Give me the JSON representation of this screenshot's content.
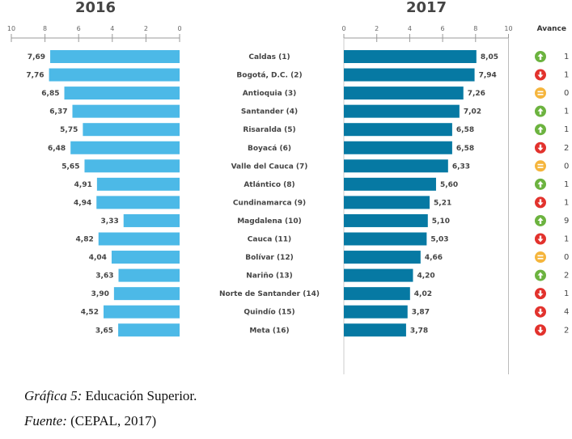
{
  "chart_data": [
    {
      "type": "bar",
      "title": "2016",
      "orientation": "horizontal",
      "direction": "right-to-left",
      "xlim": [
        0,
        10
      ],
      "ticks": [
        "10",
        "8",
        "6",
        "4",
        "2",
        "0"
      ],
      "color": "#4cb9e7",
      "categories": [
        "Caldas (1)",
        "Bogotá, D.C. (2)",
        "Antioquia (3)",
        "Santander (4)",
        "Risaralda (5)",
        "Boyacá (6)",
        "Valle del Cauca (7)",
        "Atlántico (8)",
        "Cundinamarca (9)",
        "Magdalena (10)",
        "Cauca (11)",
        "Bolívar (12)",
        "Nariño (13)",
        "Norte de Santander (14)",
        "Quindío (15)",
        "Meta (16)"
      ],
      "values": [
        7.69,
        7.76,
        6.85,
        6.37,
        5.75,
        6.48,
        5.65,
        4.91,
        4.94,
        3.33,
        4.82,
        4.04,
        3.63,
        3.9,
        4.52,
        3.65
      ],
      "labels": [
        "7,69",
        "7,76",
        "6,85",
        "6,37",
        "5,75",
        "6,48",
        "5,65",
        "4,91",
        "4,94",
        "3,33",
        "4,82",
        "4,04",
        "3,63",
        "3,90",
        "4,52",
        "3,65"
      ]
    },
    {
      "type": "bar",
      "title": "2017",
      "orientation": "horizontal",
      "xlim": [
        0,
        10
      ],
      "ticks": [
        "0",
        "2",
        "4",
        "6",
        "8",
        "10"
      ],
      "color": "#0679a3",
      "values": [
        8.05,
        7.94,
        7.26,
        7.02,
        6.58,
        6.58,
        6.33,
        5.6,
        5.21,
        5.1,
        5.03,
        4.66,
        4.2,
        4.02,
        3.87,
        3.78
      ],
      "labels": [
        "8,05",
        "7,94",
        "7,26",
        "7,02",
        "6,58",
        "6,58",
        "6,33",
        "5,60",
        "5,21",
        "5,10",
        "5,03",
        "4,66",
        "4,20",
        "4,02",
        "3,87",
        "3,78"
      ],
      "avance_header": "Avance",
      "avance_status": [
        "up",
        "down",
        "equal",
        "up",
        "up",
        "down",
        "equal",
        "up",
        "down",
        "up",
        "down",
        "equal",
        "up",
        "down",
        "down",
        "down"
      ],
      "avance_values": [
        "1",
        "1",
        "0",
        "1",
        "1",
        "2",
        "0",
        "1",
        "1",
        "9",
        "1",
        "0",
        "2",
        "1",
        "4",
        "2"
      ],
      "status_colors": {
        "up": "#6cb33f",
        "down": "#e2322d",
        "equal": "#f5b53c"
      }
    }
  ],
  "caption": {
    "label": "Gráfica 5:",
    "text": " Educación Superior.",
    "source_label": "Fuente:",
    "source_text": " (CEPAL, 2017)"
  }
}
